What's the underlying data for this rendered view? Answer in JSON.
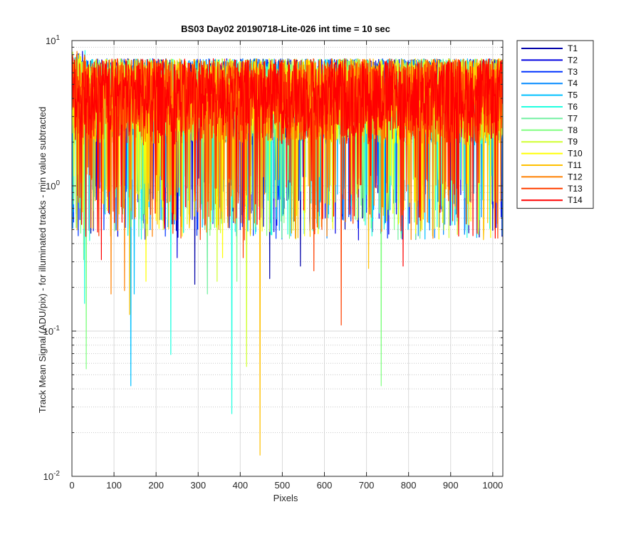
{
  "chart_data": {
    "type": "line",
    "title": "BS03 Day02 20190718-Lite-026 int time = 10 sec",
    "xlabel": "Pixels",
    "ylabel": "Track Mean Signal (ADU/pix) - for illuminated tracks - min value subtracted",
    "xlim": [
      0,
      1024
    ],
    "ylim": [
      0.01,
      10
    ],
    "yscale": "log",
    "grid": true,
    "legend_position": "outside-top-right",
    "x_ticks": [
      "0",
      "100",
      "200",
      "300",
      "400",
      "500",
      "600",
      "700",
      "800",
      "900",
      "1000"
    ],
    "y_ticks": [
      {
        "base": "10",
        "exp": "-2"
      },
      {
        "base": "10",
        "exp": "-1"
      },
      {
        "base": "10",
        "exp": "0"
      },
      {
        "base": "10",
        "exp": "1"
      }
    ],
    "typical_range": [
      1.5,
      7.5
    ],
    "series": [
      {
        "name": "T1",
        "color": "#0000a8",
        "dips": [
          {
            "x": 292,
            "y": 0.21
          },
          {
            "x": 470,
            "y": 0.23
          },
          {
            "x": 543,
            "y": 0.28
          },
          {
            "x": 690,
            "y": 0.6
          }
        ]
      },
      {
        "name": "T2",
        "color": "#0000e0",
        "dips": [
          {
            "x": 250,
            "y": 0.32
          },
          {
            "x": 335,
            "y": 0.55
          },
          {
            "x": 602,
            "y": 0.6
          }
        ]
      },
      {
        "name": "T3",
        "color": "#0033ff",
        "dips": [
          {
            "x": 222,
            "y": 0.45
          },
          {
            "x": 505,
            "y": 0.7
          }
        ]
      },
      {
        "name": "T4",
        "color": "#0088ff",
        "dips": [
          {
            "x": 165,
            "y": 0.55
          },
          {
            "x": 880,
            "y": 0.9
          }
        ]
      },
      {
        "name": "T5",
        "color": "#00c0ff",
        "dips": [
          {
            "x": 140,
            "y": 0.042
          },
          {
            "x": 148,
            "y": 0.18
          },
          {
            "x": 460,
            "y": 0.9
          }
        ]
      },
      {
        "name": "T6",
        "color": "#20ffe0",
        "dips": [
          {
            "x": 30,
            "y": 0.155
          },
          {
            "x": 42,
            "y": 0.42
          },
          {
            "x": 380,
            "y": 0.027
          },
          {
            "x": 235,
            "y": 0.069
          }
        ]
      },
      {
        "name": "T7",
        "color": "#70f0a0",
        "dips": [
          {
            "x": 322,
            "y": 0.18
          },
          {
            "x": 28,
            "y": 0.31
          },
          {
            "x": 512,
            "y": 0.8
          }
        ]
      },
      {
        "name": "T8",
        "color": "#80ff80",
        "dips": [
          {
            "x": 34,
            "y": 0.055
          },
          {
            "x": 735,
            "y": 0.042
          },
          {
            "x": 392,
            "y": 0.22
          }
        ]
      },
      {
        "name": "T9",
        "color": "#d0ff30",
        "dips": [
          {
            "x": 415,
            "y": 0.057
          },
          {
            "x": 345,
            "y": 0.22
          },
          {
            "x": 608,
            "y": 0.75
          }
        ]
      },
      {
        "name": "T10",
        "color": "#ffff00",
        "dips": [
          {
            "x": 176,
            "y": 0.22
          },
          {
            "x": 262,
            "y": 0.45
          },
          {
            "x": 358,
            "y": 0.32
          }
        ]
      },
      {
        "name": "T11",
        "color": "#ffc000",
        "dips": [
          {
            "x": 447,
            "y": 0.014
          },
          {
            "x": 137,
            "y": 0.13
          },
          {
            "x": 705,
            "y": 0.27
          }
        ]
      },
      {
        "name": "T12",
        "color": "#ff8000",
        "dips": [
          {
            "x": 93,
            "y": 0.18
          },
          {
            "x": 125,
            "y": 0.19
          },
          {
            "x": 320,
            "y": 0.48
          }
        ]
      },
      {
        "name": "T13",
        "color": "#ff4000",
        "dips": [
          {
            "x": 640,
            "y": 0.11
          },
          {
            "x": 407,
            "y": 0.32
          },
          {
            "x": 575,
            "y": 0.26
          }
        ]
      },
      {
        "name": "T14",
        "color": "#ff0000",
        "dips": [
          {
            "x": 787,
            "y": 0.28
          },
          {
            "x": 963,
            "y": 0.47
          },
          {
            "x": 70,
            "y": 0.31
          }
        ]
      }
    ]
  }
}
